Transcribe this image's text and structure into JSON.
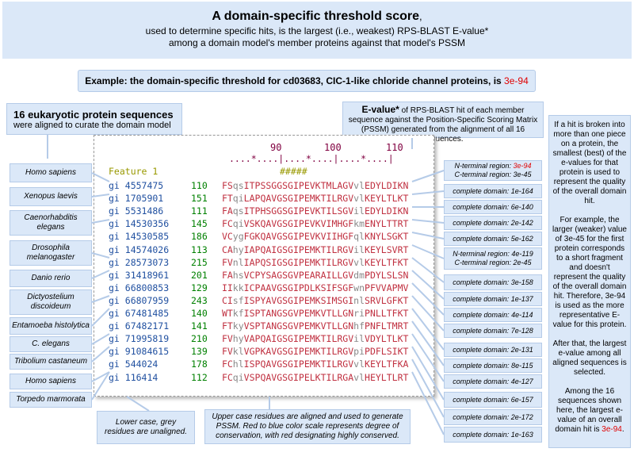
{
  "header": {
    "title": "A domain-specific threshold score",
    "title_suffix": ",",
    "line1": "used to determine specific hits, is the largest (i.e., weakest) RPS-BLAST E-value*",
    "line2": "among a domain model's member proteins against that model's PSSM"
  },
  "example": {
    "text": "Example: the domain-specific threshold for cd03683, CIC-1-like chloride channel proteins, is",
    "value": "3e-94"
  },
  "seq_box": {
    "title": "16 eukaryotic protein sequences",
    "subtitle": "were aligned to curate the domain model"
  },
  "evalue_box": {
    "title": "E-value*",
    "text": "of RPS-BLAST hit of each member sequence against the Position-Specific Scoring Matrix (PSSM) generated from the alignment of all 16 sequences."
  },
  "side_box": {
    "p1": "If a hit is broken into more than one piece on a protein, the smallest (best) of the e-values for that protein is used to represent the quality of the overall domain hit.",
    "p2": "For example, the larger (weaker) value of 3e-45 for the first protein corresponds to a short fragment and doesn't represent the quality of the overall domain hit.  Therefore, 3e-94 is used as the more representative E-value for this protein.",
    "p3": "After that, the largest e-value among all aligned sequences is selected.",
    "p4_pre": "Among the 16 sequences shown here, the largest e-value of an overall domain hit is",
    "p4_value": "3e-94",
    "p4_post": "."
  },
  "species": [
    {
      "name": "Homo sapiens"
    },
    {
      "name": "Xenopus laevis"
    },
    {
      "name": "Caenorhabditis elegans"
    },
    {
      "name": "Drosophila melanogaster"
    },
    {
      "name": "Danio rerio"
    },
    {
      "name": "Dictyostelium discoideum"
    },
    {
      "name": "Entamoeba histolytica"
    },
    {
      "name": "C. elegans"
    },
    {
      "name": "Tribolium castaneum"
    },
    {
      "name": "Homo sapiens"
    },
    {
      "name": "Torpedo marmorata"
    }
  ],
  "alignment": {
    "ruler_numbers": [
      "90",
      "100",
      "110"
    ],
    "ruler": "....*....|....*....|....*....|",
    "feature": "Feature 1",
    "hashes": "#####",
    "rows": [
      {
        "gi": "gi 4557475",
        "pos": "110",
        "seq_lc": "",
        "seq": "FSqsITPSSGGSGIPEVKTMLAGVvlEDYLDIKN"
      },
      {
        "gi": "gi 1705901",
        "pos": "151",
        "seq": "FTqiLAPQAVGSGIPEMKTILRGVvlKEYLTLKT"
      },
      {
        "gi": "gi 5531486",
        "pos": "111",
        "seq": "FAqsITPHSGGSGIPEVKTILSGVilEDYLDIKN"
      },
      {
        "gi": "gi 14530356",
        "pos": "145",
        "seq": "FCqiVSKQAVGSGIPEVKVIMHGFkmENYLTTRT"
      },
      {
        "gi": "gi 14530585",
        "pos": "186",
        "seq": "VCygFGKQAVGSGIPEVKVIIHGFqlKNYLSGKT"
      },
      {
        "gi": "gi 14574026",
        "pos": "113",
        "seq": "CAhyIAPQAIGSGIPEMKTILRGVilKEYLSVRT"
      },
      {
        "gi": "gi 28573073",
        "pos": "215",
        "seq": "FVnlIAPQSIGSGIPEMKTILRGVvlKEYLTFKT"
      },
      {
        "gi": "gi 31418961",
        "pos": "201",
        "seq": "FAhsVCPYSAGSGVPEARAILLGVdmPDYLSLSN"
      },
      {
        "gi": "gi 66800853",
        "pos": "129",
        "seq": "IIkkICPAAVGSGIPDLKSIFSGFwnPFVVAPMV"
      },
      {
        "gi": "gi 66807959",
        "pos": "243",
        "seq": "CIsfISPYAVGSGIPEMKSIMSGInlSRVLGFKT"
      },
      {
        "gi": "gi 67481485",
        "pos": "140",
        "seq": "WTkfISPTANGSGVPEMKVTLLGNriPNLLTFKT"
      },
      {
        "gi": "gi 67482171",
        "pos": "141",
        "seq": "FTkyVSPTANGSGVPEMKVTLLGNhfPNFLTMRT"
      },
      {
        "gi": "gi 71995819",
        "pos": "210",
        "seq": "FVhyVAPQAIGSGIPEMKTILRGVilVDYLTLKT"
      },
      {
        "gi": "gi 91084615",
        "pos": "139",
        "seq": "FVklVGPKAVGSGIPEMKTILRGVpiPDFLSIKT"
      },
      {
        "gi": "gi 544024",
        "pos": "178",
        "seq": "FChlISPQAVGSGIPEMKTILRGVvlKEYLTFKA"
      },
      {
        "gi": "gi 116414",
        "pos": "112",
        "seq": "FCqiVSPQAVGSGIPELKTILRGAvlHEYLTLRT"
      }
    ]
  },
  "domains": [
    {
      "line1": "N-terminal region:",
      "v1": "3e-94",
      "line2": "C-terminal region:",
      "v2": "3e-45"
    },
    {
      "line1": "complete domain:",
      "v1": "1e-164"
    },
    {
      "line1": "complete domain:",
      "v1": "6e-140"
    },
    {
      "line1": "complete domain:",
      "v1": "2e-142"
    },
    {
      "line1": "complete domain:",
      "v1": "5e-162"
    },
    {
      "line1": "N-terminal region:",
      "v1": "4e-119",
      "line2": "C-terminal region:",
      "v2": "2e-45"
    },
    {
      "line1": "complete domain:",
      "v1": "3e-158"
    },
    {
      "line1": "complete domain:",
      "v1": "1e-137"
    },
    {
      "line1": "complete domain:",
      "v1": "4e-114"
    },
    {
      "line1": "complete domain:",
      "v1": "7e-128"
    },
    {
      "line1": "complete domain:",
      "v1": "2e-131"
    },
    {
      "line1": "complete domain:",
      "v1": "8e-115"
    },
    {
      "line1": "complete domain:",
      "v1": "4e-127"
    },
    {
      "line1": "complete domain:",
      "v1": "6e-157"
    },
    {
      "line1": "complete domain:",
      "v1": "2e-172"
    },
    {
      "line1": "complete domain:",
      "v1": "1e-163"
    }
  ],
  "lower_note": "Lower case, grey residues are unaligned.",
  "upper_note": "Upper case residues are aligned and used to generate PSSM.  Red to blue color scale represents degree of conservation, with red designating highly conserved.",
  "colors": {
    "box": "#dbe8f8",
    "accent_red": "#e00000",
    "gi_blue": "#2050a0",
    "pos_green": "#008000"
  }
}
